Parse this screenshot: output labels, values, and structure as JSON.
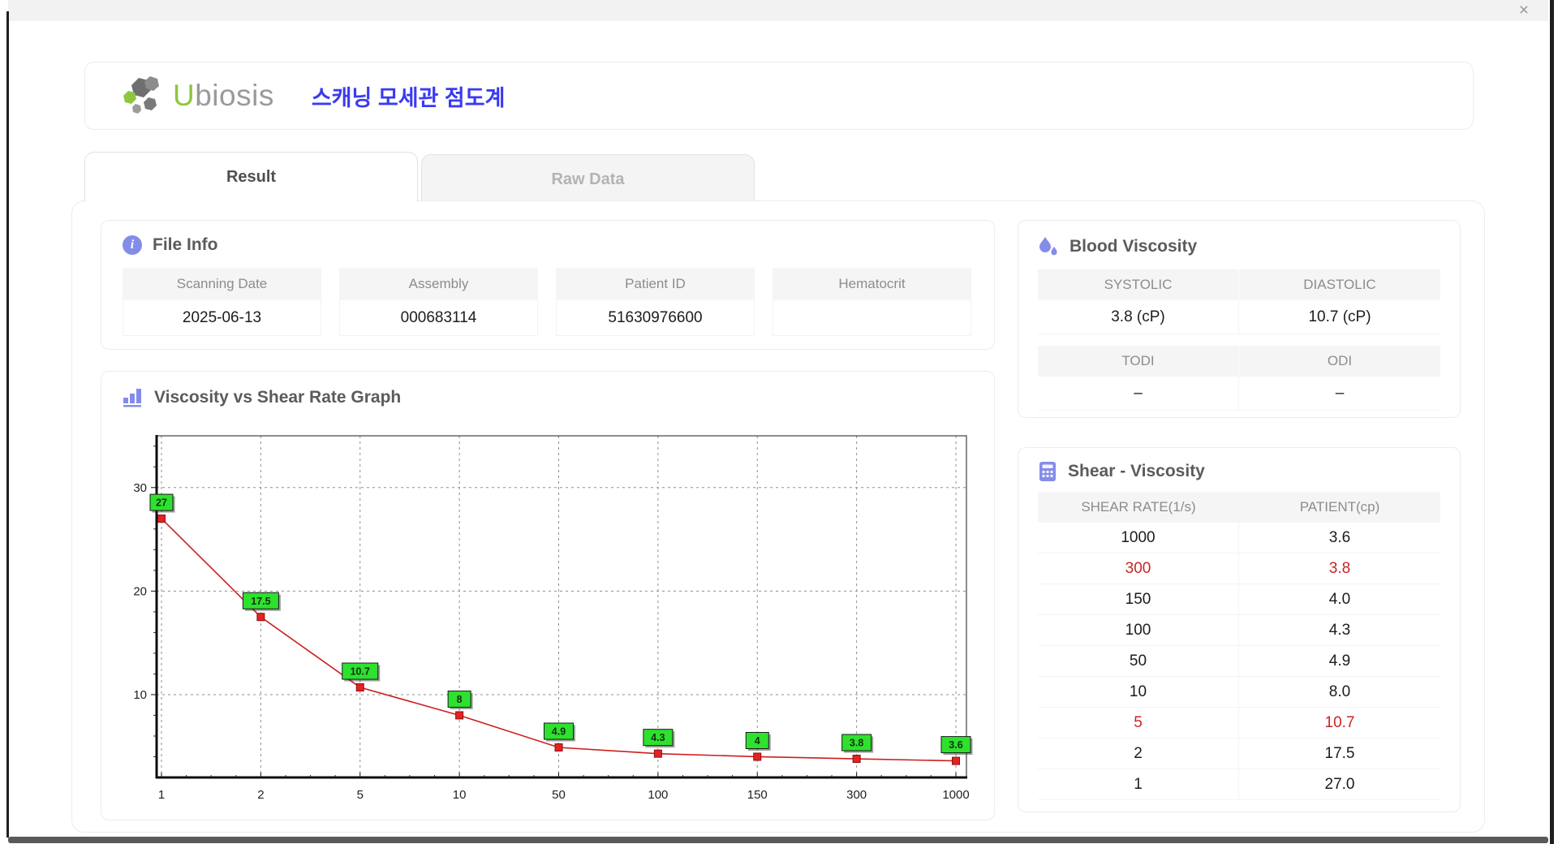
{
  "window": {
    "close_label": "×"
  },
  "header": {
    "brand_u": "U",
    "brand_rest": "biosis",
    "app_title": "스캐닝 모세관 점도계"
  },
  "tabs": [
    {
      "label": "Result",
      "active": true
    },
    {
      "label": "Raw Data",
      "active": false
    }
  ],
  "file_info": {
    "title": "File Info",
    "fields": [
      {
        "label": "Scanning Date",
        "value": "2025-06-13"
      },
      {
        "label": "Assembly",
        "value": "000683114"
      },
      {
        "label": "Patient ID",
        "value": "51630976600"
      },
      {
        "label": "Hematocrit",
        "value": ""
      }
    ]
  },
  "blood_viscosity": {
    "title": "Blood Viscosity",
    "sections": [
      {
        "headers": [
          "SYSTOLIC",
          "DIASTOLIC"
        ],
        "values": [
          "3.8 (cP)",
          "10.7 (cP)"
        ]
      },
      {
        "headers": [
          "TODI",
          "ODI"
        ],
        "values": [
          "–",
          "–"
        ]
      }
    ]
  },
  "graph": {
    "title": "Viscosity vs Shear Rate Graph"
  },
  "chart_data": {
    "type": "line",
    "title": "Viscosity vs Shear Rate Graph",
    "x_categories": [
      "1",
      "2",
      "5",
      "10",
      "50",
      "100",
      "150",
      "300",
      "1000"
    ],
    "values": [
      27,
      17.5,
      10.7,
      8,
      4.9,
      4.3,
      4,
      3.8,
      3.6
    ],
    "point_labels": [
      "27",
      "17.5",
      "10.7",
      "8",
      "4.9",
      "4.3",
      "4",
      "3.8",
      "3.6"
    ],
    "y_ticks": [
      10,
      20,
      30
    ],
    "ylim": [
      2,
      35
    ],
    "grid": true,
    "legend": "none",
    "xlabel": "",
    "ylabel": "",
    "line_color": "#cc1f1f",
    "marker_color": "#e32222",
    "marker_edge": "#8e0f0f",
    "label_bg": "#2ee12e",
    "label_edge": "#1a1a1a",
    "grid_color": "#8f8f8f"
  },
  "shear_table": {
    "title": "Shear - Viscosity",
    "columns": [
      "SHEAR RATE(1/s)",
      "PATIENT(cp)"
    ],
    "rows": [
      {
        "rate": "1000",
        "value": "3.6",
        "highlight": false
      },
      {
        "rate": "300",
        "value": "3.8",
        "highlight": true
      },
      {
        "rate": "150",
        "value": "4.0",
        "highlight": false
      },
      {
        "rate": "100",
        "value": "4.3",
        "highlight": false
      },
      {
        "rate": "50",
        "value": "4.9",
        "highlight": false
      },
      {
        "rate": "10",
        "value": "8.0",
        "highlight": false
      },
      {
        "rate": "5",
        "value": "10.7",
        "highlight": true
      },
      {
        "rate": "2",
        "value": "17.5",
        "highlight": false
      },
      {
        "rate": "1",
        "value": "27.0",
        "highlight": false
      }
    ]
  },
  "colors": {
    "accent_purple": "#848cea",
    "title_blue": "#3a3af2",
    "brand_green": "#8dc63f",
    "highlight_red": "#c92525"
  }
}
